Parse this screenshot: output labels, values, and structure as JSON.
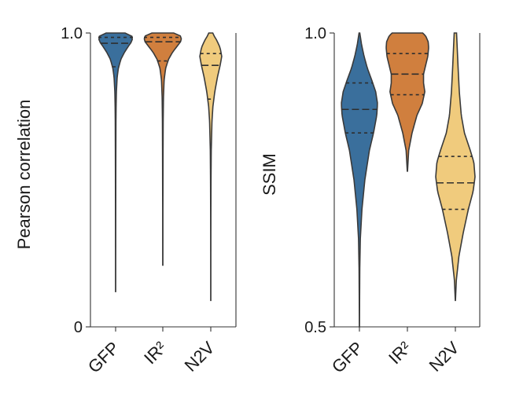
{
  "colors": {
    "GFP": "#3a6f9c",
    "IR²": "#d07f3e",
    "N2V": "#f0cb7d",
    "axis": "#333333"
  },
  "chart_data": [
    {
      "type": "violin",
      "ylabel": "Pearson correlation",
      "xlabel": "",
      "ylim": [
        0,
        1.0
      ],
      "yticks": [
        0,
        1.0
      ],
      "ytick_labels": [
        "0",
        "1.0"
      ],
      "categories": [
        "GFP",
        "IR²",
        "N2V"
      ],
      "series": [
        {
          "category": "GFP",
          "min": 0.12,
          "max": 1.0,
          "quartiles": [
            0.885,
            0.965,
            0.985
          ],
          "density": [
            [
              0.12,
              0.004
            ],
            [
              0.3,
              0.006
            ],
            [
              0.5,
              0.01
            ],
            [
              0.6,
              0.014
            ],
            [
              0.7,
              0.02
            ],
            [
              0.75,
              0.028
            ],
            [
              0.8,
              0.045
            ],
            [
              0.85,
              0.09
            ],
            [
              0.88,
              0.16
            ],
            [
              0.91,
              0.3
            ],
            [
              0.935,
              0.52
            ],
            [
              0.955,
              0.74
            ],
            [
              0.97,
              0.92
            ],
            [
              0.985,
              1.0
            ],
            [
              0.995,
              0.85
            ],
            [
              1.0,
              0.55
            ]
          ]
        },
        {
          "category": "IR²",
          "min": 0.21,
          "max": 1.0,
          "quartiles": [
            0.905,
            0.97,
            0.985
          ],
          "density": [
            [
              0.21,
              0.004
            ],
            [
              0.4,
              0.006
            ],
            [
              0.5,
              0.01
            ],
            [
              0.6,
              0.014
            ],
            [
              0.7,
              0.02
            ],
            [
              0.78,
              0.035
            ],
            [
              0.84,
              0.07
            ],
            [
              0.88,
              0.15
            ],
            [
              0.91,
              0.3
            ],
            [
              0.935,
              0.52
            ],
            [
              0.955,
              0.76
            ],
            [
              0.97,
              0.94
            ],
            [
              0.985,
              1.0
            ],
            [
              0.995,
              0.86
            ],
            [
              1.0,
              0.58
            ]
          ]
        },
        {
          "category": "N2V",
          "min": 0.09,
          "max": 1.0,
          "quartiles": [
            0.775,
            0.89,
            0.93
          ],
          "density": [
            [
              0.09,
              0.004
            ],
            [
              0.3,
              0.006
            ],
            [
              0.4,
              0.01
            ],
            [
              0.5,
              0.018
            ],
            [
              0.6,
              0.035
            ],
            [
              0.7,
              0.09
            ],
            [
              0.75,
              0.16
            ],
            [
              0.8,
              0.3
            ],
            [
              0.85,
              0.5
            ],
            [
              0.89,
              0.7
            ],
            [
              0.92,
              0.82
            ],
            [
              0.95,
              0.7
            ],
            [
              0.975,
              0.45
            ],
            [
              0.99,
              0.25
            ],
            [
              1.0,
              0.15
            ]
          ]
        }
      ]
    },
    {
      "type": "violin",
      "ylabel": "SSIM",
      "xlabel": "",
      "ylim": [
        0.5,
        1.0
      ],
      "yticks": [
        0.5,
        1.0
      ],
      "ytick_labels": [
        "0.5",
        "1.0"
      ],
      "categories": [
        "GFP",
        "IR²",
        "N2V"
      ],
      "series": [
        {
          "category": "GFP",
          "min": 0.5,
          "max": 1.0,
          "quartiles": [
            0.83,
            0.87,
            0.915
          ],
          "density": [
            [
              0.5,
              0.004
            ],
            [
              0.55,
              0.01
            ],
            [
              0.6,
              0.02
            ],
            [
              0.65,
              0.05
            ],
            [
              0.7,
              0.14
            ],
            [
              0.75,
              0.3
            ],
            [
              0.8,
              0.55
            ],
            [
              0.83,
              0.78
            ],
            [
              0.86,
              0.96
            ],
            [
              0.88,
              1.0
            ],
            [
              0.9,
              0.9
            ],
            [
              0.92,
              0.68
            ],
            [
              0.94,
              0.44
            ],
            [
              0.96,
              0.26
            ],
            [
              0.98,
              0.12
            ],
            [
              1.0,
              0.02
            ]
          ]
        },
        {
          "category": "IR²",
          "min": 0.765,
          "max": 1.0,
          "quartiles": [
            0.895,
            0.93,
            0.965
          ],
          "density": [
            [
              0.765,
              0.006
            ],
            [
              0.8,
              0.06
            ],
            [
              0.83,
              0.22
            ],
            [
              0.86,
              0.45
            ],
            [
              0.88,
              0.7
            ],
            [
              0.9,
              0.82
            ],
            [
              0.915,
              0.76
            ],
            [
              0.93,
              0.76
            ],
            [
              0.945,
              0.86
            ],
            [
              0.96,
              0.96
            ],
            [
              0.975,
              1.0
            ],
            [
              0.985,
              0.98
            ],
            [
              0.995,
              0.86
            ],
            [
              1.0,
              0.72
            ]
          ]
        },
        {
          "category": "N2V",
          "min": 0.545,
          "max": 1.0,
          "quartiles": [
            0.7,
            0.745,
            0.79
          ],
          "density": [
            [
              0.545,
              0.004
            ],
            [
              0.58,
              0.05
            ],
            [
              0.62,
              0.18
            ],
            [
              0.66,
              0.4
            ],
            [
              0.7,
              0.66
            ],
            [
              0.73,
              0.9
            ],
            [
              0.755,
              1.0
            ],
            [
              0.78,
              0.94
            ],
            [
              0.8,
              0.76
            ],
            [
              0.83,
              0.46
            ],
            [
              0.86,
              0.3
            ],
            [
              0.9,
              0.2
            ],
            [
              0.94,
              0.14
            ],
            [
              0.97,
              0.1
            ],
            [
              1.0,
              0.06
            ]
          ]
        }
      ]
    }
  ]
}
